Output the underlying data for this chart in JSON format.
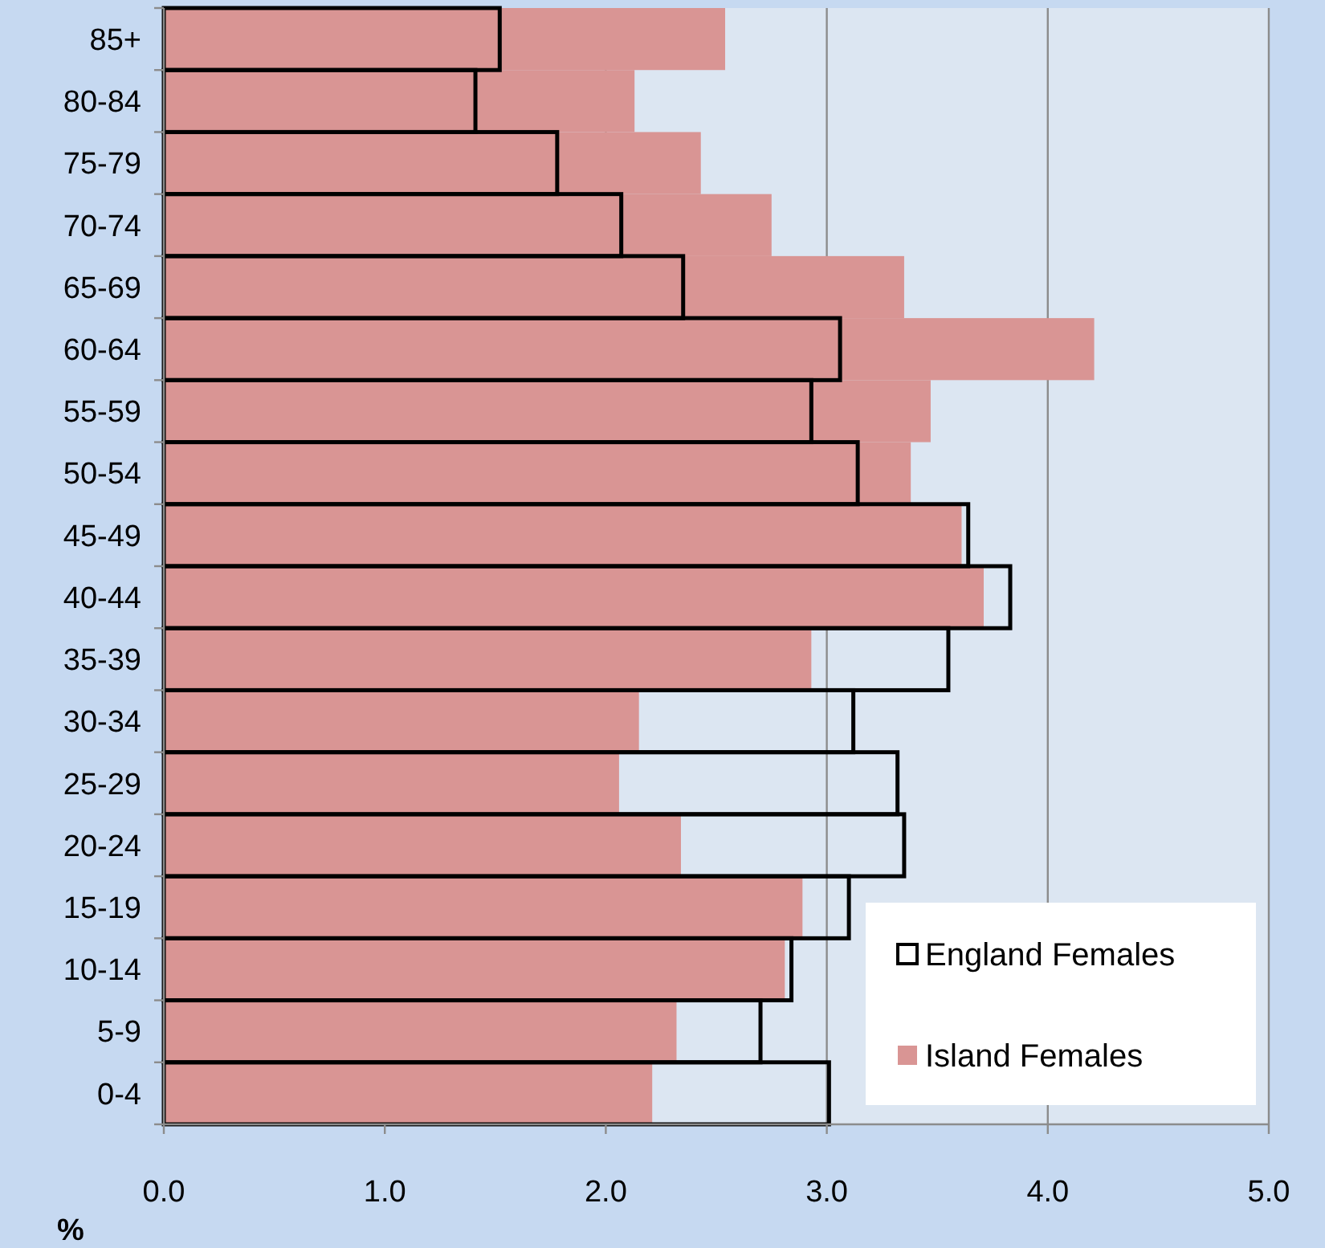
{
  "chart_data": {
    "type": "bar",
    "orientation": "horizontal",
    "xlabel": "%",
    "categories": [
      "85+",
      "80-84",
      "75-79",
      "70-74",
      "65-69",
      "60-64",
      "55-59",
      "50-54",
      "45-49",
      "40-44",
      "35-39",
      "30-34",
      "25-29",
      "20-24",
      "15-19",
      "10-14",
      "5-9",
      "0-4"
    ],
    "series": [
      {
        "name": "England Females",
        "color": "#000000",
        "values": [
          1.52,
          1.41,
          1.78,
          2.07,
          2.35,
          3.06,
          2.93,
          3.14,
          3.64,
          3.83,
          3.55,
          3.12,
          3.32,
          3.35,
          3.1,
          2.84,
          2.7,
          3.01
        ]
      },
      {
        "name": "Island Females",
        "color": "#d99594",
        "values": [
          2.54,
          2.13,
          2.43,
          2.75,
          3.35,
          4.21,
          3.47,
          3.38,
          3.61,
          3.71,
          2.93,
          2.15,
          2.06,
          2.34,
          2.89,
          2.81,
          2.32,
          2.21
        ]
      }
    ],
    "xlim": [
      0,
      5
    ],
    "xticks": [
      {
        "value": 0,
        "label": "0.0"
      },
      {
        "value": 1,
        "label": "1.0"
      },
      {
        "value": 2,
        "label": "2.0"
      },
      {
        "value": 3,
        "label": "3.0"
      },
      {
        "value": 4,
        "label": "4.0"
      },
      {
        "value": 5,
        "label": "5.0"
      }
    ],
    "grid": "x",
    "legend": "bottom right"
  }
}
